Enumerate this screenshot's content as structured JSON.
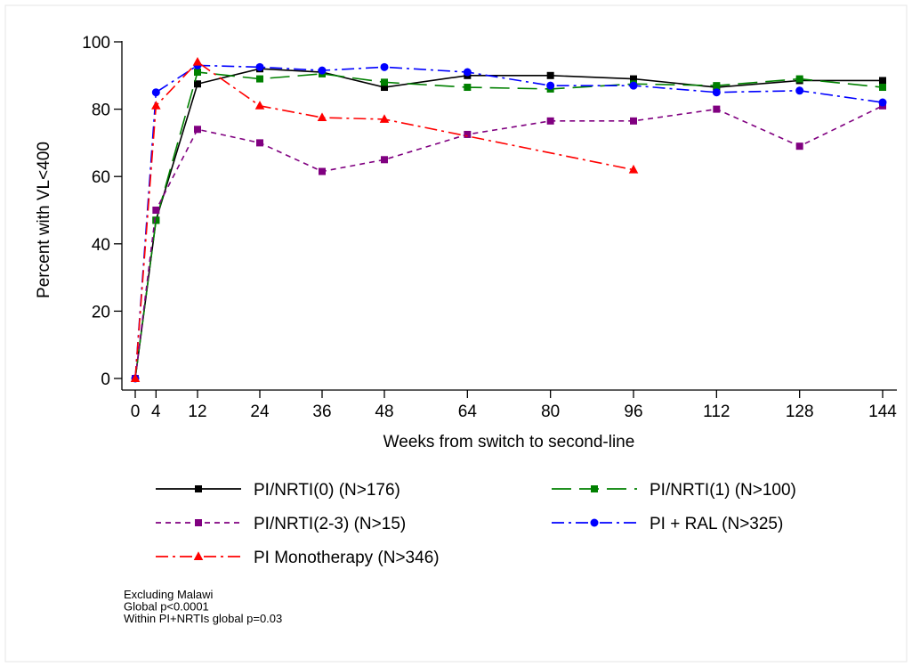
{
  "chart_data": {
    "type": "line",
    "title": "",
    "xlabel": "Weeks from switch to second-line",
    "ylabel": "Percent with VL<400",
    "xlim": [
      0,
      144
    ],
    "ylim": [
      0,
      100
    ],
    "x_ticks": [
      0,
      4,
      12,
      24,
      36,
      48,
      64,
      80,
      96,
      112,
      128,
      144
    ],
    "y_ticks": [
      0,
      20,
      40,
      60,
      80,
      100
    ],
    "grid": false,
    "legend_position": "bottom",
    "series": [
      {
        "name": "PI/NRTI(0) (N>176)",
        "color": "#000000",
        "marker": "square",
        "dash": "solid",
        "x": [
          0,
          4,
          12,
          24,
          36,
          48,
          64,
          80,
          96,
          112,
          128,
          144
        ],
        "y": [
          0,
          47,
          87.5,
          92,
          91,
          86.5,
          90,
          90,
          89,
          86.5,
          88.5,
          88.5
        ]
      },
      {
        "name": "PI/NRTI(1) (N>100)",
        "color": "#008000",
        "marker": "square",
        "dash": "long",
        "x": [
          0,
          4,
          12,
          24,
          36,
          48,
          64,
          80,
          96,
          112,
          128,
          144
        ],
        "y": [
          0,
          47,
          91,
          89,
          90.5,
          88,
          86.5,
          86,
          87.5,
          87,
          89,
          86.5
        ]
      },
      {
        "name": "PI/NRTI(2-3) (N>15)",
        "color": "#800080",
        "marker": "square",
        "dash": "short",
        "x": [
          0,
          4,
          12,
          24,
          36,
          48,
          64,
          80,
          96,
          112,
          128,
          144
        ],
        "y": [
          0,
          50,
          74,
          70,
          61.5,
          65,
          72.5,
          76.5,
          76.5,
          80,
          69,
          81
        ]
      },
      {
        "name": "PI + RAL (N>325)",
        "color": "#0000ff",
        "marker": "circle",
        "dash": "dashdot",
        "x": [
          0,
          4,
          12,
          24,
          36,
          48,
          64,
          80,
          96,
          112,
          128,
          144
        ],
        "y": [
          0,
          85,
          93,
          92.5,
          91.5,
          92.5,
          91,
          87,
          87,
          85,
          85.5,
          82
        ]
      },
      {
        "name": "PI Monotherapy (N>346)",
        "color": "#ff0000",
        "marker": "triangle",
        "dash": "dashdot",
        "x": [
          0,
          4,
          12,
          24,
          36,
          48,
          96
        ],
        "y": [
          0,
          81,
          94,
          81,
          77.5,
          77,
          62
        ]
      }
    ],
    "notes": [
      "Excluding Malawi",
      "Global p<0.0001",
      "Within PI+NRTIs global p=0.03"
    ]
  }
}
